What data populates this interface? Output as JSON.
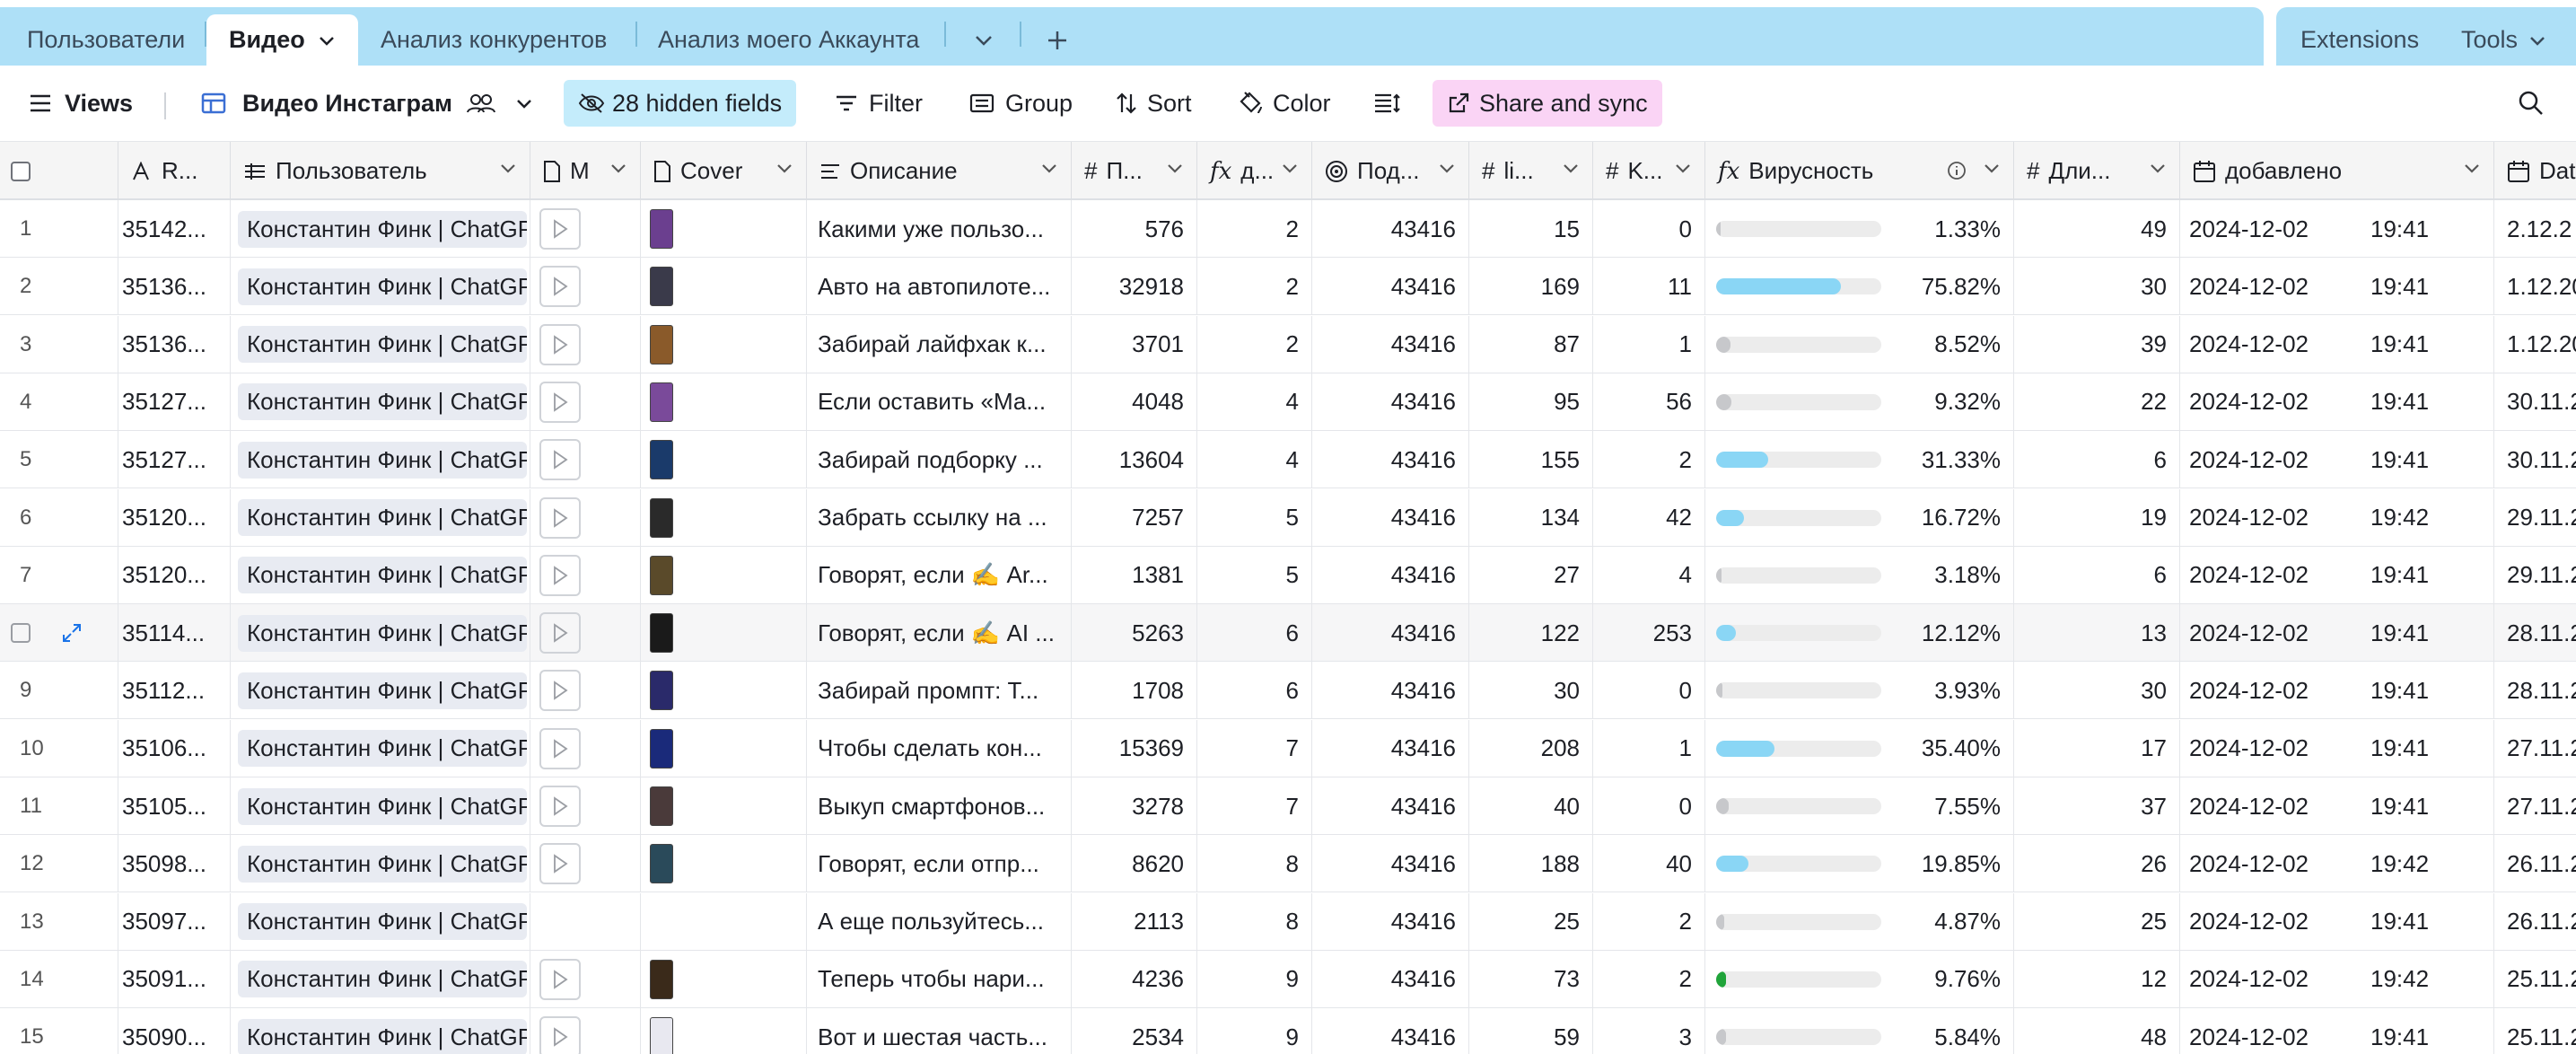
{
  "tabs": [
    {
      "label": "Пользователи"
    },
    {
      "label": "Видео"
    },
    {
      "label": "Анализ конкурентов"
    },
    {
      "label": "Анализ моего Аккаунта"
    }
  ],
  "tabbar_right": {
    "extensions": "Extensions",
    "tools": "Tools"
  },
  "toolbar": {
    "views": "Views",
    "view_name": "Видео Инстаграм",
    "hidden_fields": "28 hidden fields",
    "filter": "Filter",
    "group": "Group",
    "sort": "Sort",
    "color": "Color",
    "share": "Share and sync"
  },
  "columns": {
    "rid": "R...",
    "user": "Пользователь",
    "media": "M",
    "cover": "Cover",
    "desc": "Описание",
    "views": "П...",
    "days": "д...",
    "subs": "Под...",
    "likes": "li...",
    "comments": "K...",
    "virality": "Вирусность",
    "duration": "Дли...",
    "added": "добавлено",
    "date": "Dat"
  },
  "colors": {
    "viral_blue": "#8ad6f5",
    "viral_grey": "#c7c8cb",
    "viral_green": "#20a43a",
    "accent": "#1a73e8"
  },
  "rows": [
    {
      "n": "1",
      "id": "35142...",
      "user": "Константин Финк | ChatGPT",
      "desc": "Какими уже пользо...",
      "views": "576",
      "days": "2",
      "subs": "43416",
      "likes": "15",
      "comments": "0",
      "vir": "1.33%",
      "vir_frac": 0.013,
      "vir_color": "grey",
      "dur": "49",
      "date": "2024-12-02",
      "time": "19:41",
      "d2": "2.12.2",
      "media": true,
      "cover": "#6b3f8f"
    },
    {
      "n": "2",
      "id": "35136...",
      "user": "Константин Финк | ChatGPT",
      "desc": "Авто на автопилоте...",
      "views": "32918",
      "days": "2",
      "subs": "43416",
      "likes": "169",
      "comments": "11",
      "vir": "75.82%",
      "vir_frac": 0.758,
      "vir_color": "blue",
      "dur": "30",
      "date": "2024-12-02",
      "time": "19:41",
      "d2": "1.12.20",
      "media": true,
      "cover": "#3a3a4a"
    },
    {
      "n": "3",
      "id": "35136...",
      "user": "Константин Финк | ChatGPT",
      "desc": "Забирай лайфхак к...",
      "views": "3701",
      "days": "2",
      "subs": "43416",
      "likes": "87",
      "comments": "1",
      "vir": "8.52%",
      "vir_frac": 0.085,
      "vir_color": "grey",
      "dur": "39",
      "date": "2024-12-02",
      "time": "19:41",
      "d2": "1.12.20",
      "media": true,
      "cover": "#8a5a2a"
    },
    {
      "n": "4",
      "id": "35127...",
      "user": "Константин Финк | ChatGPT",
      "desc": "Если оставить «Ма...",
      "views": "4048",
      "days": "4",
      "subs": "43416",
      "likes": "95",
      "comments": "56",
      "vir": "9.32%",
      "vir_frac": 0.093,
      "vir_color": "grey",
      "dur": "22",
      "date": "2024-12-02",
      "time": "19:41",
      "d2": "30.11.2",
      "media": true,
      "cover": "#7a4a9a"
    },
    {
      "n": "5",
      "id": "35127...",
      "user": "Константин Финк | ChatGPT",
      "desc": "Забирай подборку ...",
      "views": "13604",
      "days": "4",
      "subs": "43416",
      "likes": "155",
      "comments": "2",
      "vir": "31.33%",
      "vir_frac": 0.313,
      "vir_color": "blue",
      "dur": "6",
      "date": "2024-12-02",
      "time": "19:41",
      "d2": "30.11.2",
      "media": true,
      "cover": "#1a3a6a"
    },
    {
      "n": "6",
      "id": "35120...",
      "user": "Константин Финк | ChatGPT",
      "desc": "Забрать ссылку на ...",
      "views": "7257",
      "days": "5",
      "subs": "43416",
      "likes": "134",
      "comments": "42",
      "vir": "16.72%",
      "vir_frac": 0.167,
      "vir_color": "blue",
      "dur": "19",
      "date": "2024-12-02",
      "time": "19:42",
      "d2": "29.11.2",
      "media": true,
      "cover": "#2a2a2a"
    },
    {
      "n": "7",
      "id": "35120...",
      "user": "Константин Финк | ChatGPT",
      "desc": "Говорят, если ✍️ Ar...",
      "views": "1381",
      "days": "5",
      "subs": "43416",
      "likes": "27",
      "comments": "4",
      "vir": "3.18%",
      "vir_frac": 0.032,
      "vir_color": "grey",
      "dur": "6",
      "date": "2024-12-02",
      "time": "19:41",
      "d2": "29.11.2",
      "media": true,
      "cover": "#5a4a2a"
    },
    {
      "n": "",
      "id": "35114...",
      "user": "Константин Финк | ChatGPT",
      "desc": "Говорят, если ✍️ AI ...",
      "views": "5263",
      "days": "6",
      "subs": "43416",
      "likes": "122",
      "comments": "253",
      "vir": "12.12%",
      "vir_frac": 0.121,
      "vir_color": "blue",
      "dur": "13",
      "date": "2024-12-02",
      "time": "19:41",
      "d2": "28.11.2",
      "media": true,
      "cover": "#1a1a1a",
      "hover": true
    },
    {
      "n": "9",
      "id": "35112...",
      "user": "Константин Финк | ChatGPT",
      "desc": "Забирай промпт: Т...",
      "views": "1708",
      "days": "6",
      "subs": "43416",
      "likes": "30",
      "comments": "0",
      "vir": "3.93%",
      "vir_frac": 0.039,
      "vir_color": "grey",
      "dur": "30",
      "date": "2024-12-02",
      "time": "19:41",
      "d2": "28.11.2",
      "media": true,
      "cover": "#2a2a6a"
    },
    {
      "n": "10",
      "id": "35106...",
      "user": "Константин Финк | ChatGPT",
      "desc": "Чтобы сделать кон...",
      "views": "15369",
      "days": "7",
      "subs": "43416",
      "likes": "208",
      "comments": "1",
      "vir": "35.40%",
      "vir_frac": 0.354,
      "vir_color": "blue",
      "dur": "17",
      "date": "2024-12-02",
      "time": "19:41",
      "d2": "27.11.2",
      "media": true,
      "cover": "#1a2a7a"
    },
    {
      "n": "11",
      "id": "35105...",
      "user": "Константин Финк | ChatGPT",
      "desc": "Выкуп смартфонов...",
      "views": "3278",
      "days": "7",
      "subs": "43416",
      "likes": "40",
      "comments": "0",
      "vir": "7.55%",
      "vir_frac": 0.075,
      "vir_color": "grey",
      "dur": "37",
      "date": "2024-12-02",
      "time": "19:41",
      "d2": "27.11.2",
      "media": true,
      "cover": "#4a3a3a"
    },
    {
      "n": "12",
      "id": "35098...",
      "user": "Константин Финк | ChatGPT",
      "desc": "Говорят, если отпр...",
      "views": "8620",
      "days": "8",
      "subs": "43416",
      "likes": "188",
      "comments": "40",
      "vir": "19.85%",
      "vir_frac": 0.198,
      "vir_color": "blue",
      "dur": "26",
      "date": "2024-12-02",
      "time": "19:42",
      "d2": "26.11.2",
      "media": true,
      "cover": "#2a4a5a"
    },
    {
      "n": "13",
      "id": "35097...",
      "user": "Константин Финк | ChatGPT",
      "desc": "А еще пользуйтесь...",
      "views": "2113",
      "days": "8",
      "subs": "43416",
      "likes": "25",
      "comments": "2",
      "vir": "4.87%",
      "vir_frac": 0.049,
      "vir_color": "grey",
      "dur": "25",
      "date": "2024-12-02",
      "time": "19:41",
      "d2": "26.11.2",
      "media": false,
      "cover": ""
    },
    {
      "n": "14",
      "id": "35091...",
      "user": "Константин Финк | ChatGPT",
      "desc": "Теперь чтобы нари...",
      "views": "4236",
      "days": "9",
      "subs": "43416",
      "likes": "73",
      "comments": "2",
      "vir": "9.76%",
      "vir_frac": 0.098,
      "vir_color": "green",
      "dur": "12",
      "date": "2024-12-02",
      "time": "19:42",
      "d2": "25.11.2",
      "media": true,
      "cover": "#3a2a1a"
    },
    {
      "n": "15",
      "id": "35090...",
      "user": "Константин Финк | ChatGPT",
      "desc": "Вот и шестая часть...",
      "views": "2534",
      "days": "9",
      "subs": "43416",
      "likes": "59",
      "comments": "3",
      "vir": "5.84%",
      "vir_frac": 0.058,
      "vir_color": "grey",
      "dur": "48",
      "date": "2024-12-02",
      "time": "19:41",
      "d2": "25.11.2",
      "media": true,
      "cover": "#e8e8f0"
    }
  ]
}
